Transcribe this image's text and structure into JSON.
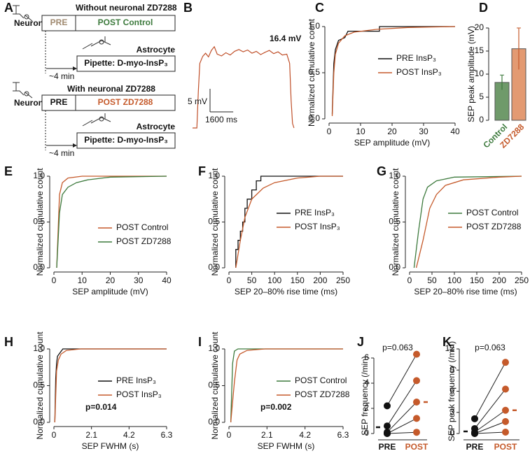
{
  "diagram": {
    "panel": "A",
    "blocks": [
      {
        "title": "Without neuronal ZD7288",
        "cell": "Neuron",
        "pre": "PRE",
        "post": "POST Control",
        "astrocyte": "Astrocyte",
        "pipette": "Pipette: D-myo-InsP₃",
        "delay": "~4 min"
      },
      {
        "title": "With neuronal ZD7288",
        "cell": "Neuron",
        "pre": "PRE",
        "post": "POST ZD7288",
        "astrocyte": "Astrocyte",
        "pipette": "Pipette: D-myo-InsP₃",
        "delay": "~4 min"
      }
    ]
  },
  "chart_data": [
    {
      "panel": "B",
      "type": "trace",
      "color": "#c0502a",
      "annotation": "16.4 mV",
      "x": [
        0,
        300,
        400,
        500,
        700,
        900,
        1100,
        1300,
        1500,
        1700,
        2000,
        2300,
        2600,
        2900,
        3200,
        3500,
        3800,
        4100,
        4400,
        4700,
        5000,
        5300,
        5600,
        5900,
        6200,
        6500,
        6700,
        6800,
        6900,
        7000
      ],
      "values": [
        0,
        0,
        8,
        14,
        15.5,
        16.2,
        15.4,
        16.8,
        17.6,
        16.0,
        15.6,
        16.3,
        15.8,
        16.6,
        17.0,
        16.5,
        16.9,
        16.2,
        16.6,
        15.9,
        16.4,
        16.8,
        16.1,
        16.5,
        15.8,
        16.0,
        14,
        6,
        1,
        0
      ],
      "scalebar": {
        "y": {
          "value": 5,
          "label": "5 mV"
        },
        "x": {
          "value": 1600,
          "label": "1600 ms"
        }
      }
    },
    {
      "panel": "C",
      "type": "ecdf",
      "xlabel": "SEP amplitude (mV)",
      "ylabel": "Normalized cumulative count",
      "xlim": [
        0,
        40
      ],
      "xticks": [
        0,
        10,
        20,
        30,
        40
      ],
      "ylim": [
        0,
        1
      ],
      "yticks": [
        {
          "value": 0,
          "label": "0.0"
        },
        {
          "value": 0.5,
          "label": "0.5"
        },
        {
          "value": 1,
          "label": "1.0"
        }
      ],
      "series": [
        {
          "name": "PRE InsP₃",
          "color": "#111111",
          "x": [
            1,
            1.5,
            2,
            3,
            5,
            6,
            16,
            16,
            40
          ],
          "values": [
            0.05,
            0.6,
            0.75,
            0.85,
            0.88,
            0.95,
            0.95,
            1,
            1
          ]
        },
        {
          "name": "POST InsP₃",
          "color": "#c55a2b",
          "x": [
            1,
            1.5,
            2,
            3,
            5,
            8,
            15,
            25,
            40
          ],
          "values": [
            0.03,
            0.5,
            0.7,
            0.82,
            0.9,
            0.94,
            0.97,
            0.99,
            1
          ]
        }
      ]
    },
    {
      "panel": "D",
      "type": "bar",
      "ylabel": "SEP peak amplitude (mV)",
      "categories": [
        "Control",
        "ZD7288"
      ],
      "values": [
        8.2,
        15.5
      ],
      "errors": [
        1.6,
        4.5
      ],
      "colors": [
        "#6f9a6a",
        "#e39a72"
      ],
      "label_colors": [
        "#3d7a3d",
        "#c55a2b"
      ],
      "ylim": [
        0,
        20
      ],
      "yticks": [
        0,
        5,
        10,
        15,
        20
      ]
    },
    {
      "panel": "E",
      "type": "ecdf",
      "xlabel": "SEP amplitude (mV)",
      "ylabel": "Normalized cumulative count",
      "xlim": [
        0,
        40
      ],
      "xticks": [
        0,
        10,
        20,
        30,
        40
      ],
      "ylim": [
        0,
        1
      ],
      "yticks": [
        {
          "value": 0,
          "label": "0.0"
        },
        {
          "value": 0.5,
          "label": "0.5"
        },
        {
          "value": 1,
          "label": "1.0"
        }
      ],
      "series": [
        {
          "name": "POST Control",
          "color": "#c55a2b",
          "x": [
            1,
            1.5,
            2,
            3,
            5,
            10,
            40
          ],
          "values": [
            0,
            0.4,
            0.8,
            0.93,
            0.98,
            1,
            1
          ]
        },
        {
          "name": "POST ZD7288",
          "color": "#3d7a3d",
          "x": [
            1,
            1.5,
            2,
            3,
            5,
            8,
            12,
            20,
            40
          ],
          "values": [
            0,
            0.3,
            0.6,
            0.8,
            0.88,
            0.93,
            0.96,
            0.99,
            1
          ]
        }
      ]
    },
    {
      "panel": "F",
      "type": "ecdf",
      "xlabel": "SEP 20–80% rise time (ms)",
      "ylabel": "Normalized cumulative count",
      "xlim": [
        0,
        250
      ],
      "xticks": [
        0,
        50,
        100,
        150,
        200,
        250
      ],
      "ylim": [
        0,
        1
      ],
      "yticks": [
        {
          "value": 0,
          "label": "0.0"
        },
        {
          "value": 0.5,
          "label": "0.5"
        },
        {
          "value": 1,
          "label": "1.0"
        }
      ],
      "series": [
        {
          "name": "PRE InsP₃",
          "color": "#111111",
          "x": [
            15,
            15,
            20,
            20,
            25,
            25,
            30,
            30,
            35,
            35,
            40,
            40,
            50,
            50,
            60,
            60,
            70,
            70,
            250
          ],
          "values": [
            0,
            0.2,
            0.2,
            0.3,
            0.3,
            0.4,
            0.4,
            0.5,
            0.5,
            0.65,
            0.65,
            0.75,
            0.75,
            0.85,
            0.85,
            0.95,
            0.95,
            1,
            1
          ]
        },
        {
          "name": "POST InsP₃",
          "color": "#c55a2b",
          "x": [
            15,
            25,
            35,
            50,
            75,
            100,
            150,
            200,
            250
          ],
          "values": [
            0,
            0.3,
            0.55,
            0.75,
            0.87,
            0.93,
            0.98,
            1,
            1
          ]
        }
      ]
    },
    {
      "panel": "G",
      "type": "ecdf",
      "xlabel": "SEP 20–80% rise time (ms)",
      "ylabel": "Normalized cumulative count",
      "xlim": [
        0,
        250
      ],
      "xticks": [
        0,
        50,
        100,
        150,
        200,
        250
      ],
      "ylim": [
        0,
        1
      ],
      "yticks": [
        {
          "value": 0,
          "label": "0.0"
        },
        {
          "value": 0.5,
          "label": "0.5"
        },
        {
          "value": 1,
          "label": "1.0"
        }
      ],
      "series": [
        {
          "name": "POST Control",
          "color": "#3d7a3d",
          "x": [
            10,
            20,
            30,
            40,
            60,
            100,
            250
          ],
          "values": [
            0,
            0.4,
            0.75,
            0.88,
            0.95,
            0.99,
            1
          ]
        },
        {
          "name": "POST ZD7288",
          "color": "#c55a2b",
          "x": [
            15,
            30,
            45,
            60,
            80,
            120,
            200,
            250
          ],
          "values": [
            0,
            0.3,
            0.65,
            0.8,
            0.9,
            0.96,
            0.99,
            1
          ]
        }
      ]
    },
    {
      "panel": "H",
      "type": "ecdf",
      "xlabel": "SEP FWHM (s)",
      "ylabel": "Normalized cumulative count",
      "annotation": "p=0.014",
      "xlim": [
        0,
        6.3
      ],
      "xticks": [
        0,
        2.1,
        4.2,
        6.3
      ],
      "ylim": [
        0,
        1
      ],
      "yticks": [
        {
          "value": 0,
          "label": "0.0"
        },
        {
          "value": 0.5,
          "label": "0.5"
        },
        {
          "value": 1,
          "label": "1.0"
        }
      ],
      "series": [
        {
          "name": "PRE InsP₃",
          "color": "#111111",
          "x": [
            0.05,
            0.1,
            0.15,
            0.2,
            0.35,
            0.5,
            6.3
          ],
          "values": [
            0,
            0.6,
            0.8,
            0.9,
            0.95,
            1,
            1
          ]
        },
        {
          "name": "POST InsP₃",
          "color": "#c55a2b",
          "x": [
            0.05,
            0.15,
            0.25,
            0.4,
            0.7,
            1.5,
            6.3
          ],
          "values": [
            0,
            0.7,
            0.85,
            0.93,
            0.98,
            1,
            1
          ]
        }
      ]
    },
    {
      "panel": "I",
      "type": "ecdf",
      "xlabel": "SEP FWHM (s)",
      "ylabel": "Normalized cumulative count",
      "annotation": "p=0.002",
      "xlim": [
        0,
        6.3
      ],
      "xticks": [
        0,
        2.1,
        4.2,
        6.3
      ],
      "ylim": [
        0,
        1
      ],
      "yticks": [
        {
          "value": 0,
          "label": "0.0"
        },
        {
          "value": 0.5,
          "label": "0.5"
        },
        {
          "value": 1,
          "label": "1.0"
        }
      ],
      "series": [
        {
          "name": "POST Control",
          "color": "#3d7a3d",
          "x": [
            0.1,
            0.2,
            0.3,
            0.5,
            6.3
          ],
          "values": [
            0,
            0.8,
            0.97,
            1,
            1
          ]
        },
        {
          "name": "POST ZD7288",
          "color": "#c55a2b",
          "x": [
            0.1,
            0.3,
            0.45,
            0.6,
            1,
            2,
            6.3
          ],
          "values": [
            0,
            0.55,
            0.85,
            0.93,
            0.98,
            1,
            1
          ]
        }
      ]
    },
    {
      "panel": "J",
      "type": "paired",
      "ylabel": "SEP frequency (/min)",
      "annotation": "p=0.063",
      "categories": [
        "PRE",
        "POST"
      ],
      "category_colors": [
        "#111111",
        "#c55a2b"
      ],
      "pairs": [
        [
          2.2,
          6.3
        ],
        [
          0.6,
          4.2
        ],
        [
          0.1,
          2.5
        ],
        [
          0,
          1.2
        ],
        [
          0,
          0.1
        ]
      ],
      "means": [
        0.5,
        2.5
      ],
      "ylim": [
        0,
        6
      ],
      "yticks": [
        0,
        2,
        4,
        6
      ]
    },
    {
      "panel": "K",
      "type": "paired",
      "ylabel": "SEP peak frequency (/min)",
      "annotation": "p=0.063",
      "categories": [
        "PRE",
        "POST"
      ],
      "category_colors": [
        "#111111",
        "#c55a2b"
      ],
      "pairs": [
        [
          2.1,
          10.1
        ],
        [
          0.7,
          6.3
        ],
        [
          0.2,
          3.3
        ],
        [
          0,
          1.7
        ],
        [
          0,
          0.2
        ]
      ],
      "means": [
        0.3,
        3.3
      ],
      "ylim": [
        0,
        12
      ],
      "yticks": [
        0,
        3,
        6,
        9,
        12
      ]
    }
  ]
}
